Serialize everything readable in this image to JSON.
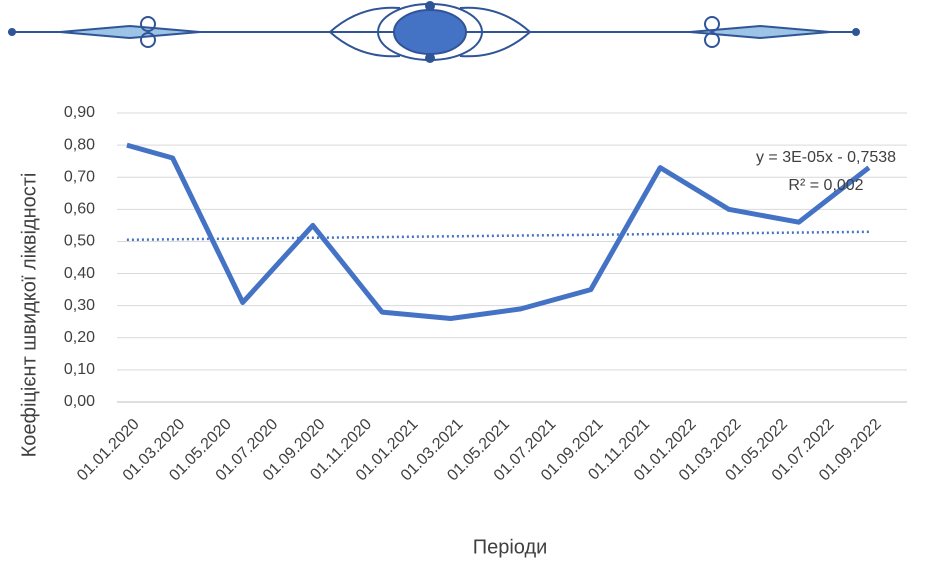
{
  "chart_data": {
    "type": "line",
    "y_label": "Коефіцієнт  швидкої ліквідності",
    "x_label": "Періоди",
    "x": [
      "01.01.2020",
      "01.03.2020",
      "01.06.2020",
      "01.09.2020",
      "01.12.2020",
      "01.03.2021",
      "01.06.2021",
      "01.09.2021",
      "01.12.2021",
      "01.03.2022",
      "01.06.2022",
      "01.09.2022"
    ],
    "series": [
      {
        "color": "#4472c4",
        "values": [
          0.8,
          0.76,
          0.31,
          0.55,
          0.28,
          0.26,
          0.29,
          0.35,
          0.73,
          0.6,
          0.56,
          0.73
        ]
      }
    ],
    "trendline": {
      "color": "#4472c4",
      "x": [
        "01.01.2020",
        "01.09.2022"
      ],
      "values": [
        0.505,
        0.53
      ],
      "equation": "y = 3E-05x - 0,7538",
      "r_squared": "R² = 0,002"
    },
    "xlim": [
      "19.12.2019",
      "21.10.2022"
    ],
    "xticks": [
      "01.01.2020",
      "01.03.2020",
      "01.05.2020",
      "01.07.2020",
      "01.09.2020",
      "01.11.2020",
      "01.01.2021",
      "01.03.2021",
      "01.05.2021",
      "01.07.2021",
      "01.09.2021",
      "01.11.2021",
      "01.01.2022",
      "01.03.2022",
      "01.05.2022",
      "01.07.2022",
      "01.09.2022"
    ],
    "ylim": [
      0,
      0.9
    ],
    "yticks": [
      {
        "value": 0,
        "label": "0,00"
      },
      {
        "value": 0.1,
        "label": "0,10"
      },
      {
        "value": 0.2,
        "label": "0,20"
      },
      {
        "value": 0.3,
        "label": "0,30"
      },
      {
        "value": 0.4,
        "label": "0,40"
      },
      {
        "value": 0.5,
        "label": "0,50"
      },
      {
        "value": 0.6,
        "label": "0,60"
      },
      {
        "value": 0.7,
        "label": "0,70"
      },
      {
        "value": 0.8,
        "label": "0,80"
      },
      {
        "value": 0.9,
        "label": "0,90"
      }
    ],
    "grid": true
  }
}
